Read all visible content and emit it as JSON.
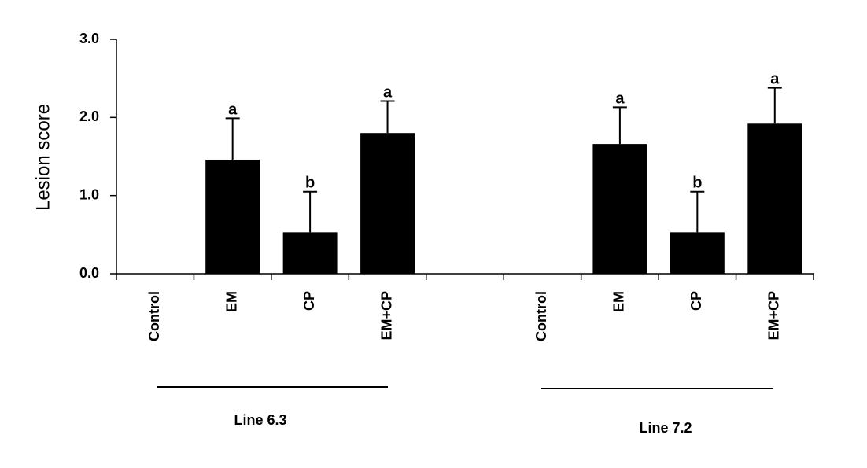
{
  "chart_data": {
    "type": "bar",
    "y_label": "Lesion score",
    "categories": [
      "Control",
      "EM",
      "CP",
      "EM+CP",
      null,
      "Control",
      "EM",
      "CP",
      "EM+CP"
    ],
    "values": [
      0,
      1.46,
      0.53,
      1.8,
      null,
      0,
      1.66,
      0.53,
      1.92
    ],
    "errors": [
      null,
      0.53,
      0.52,
      0.41,
      null,
      null,
      0.47,
      0.52,
      0.46
    ],
    "annotations": [
      null,
      "a",
      "b",
      "a",
      null,
      null,
      "a",
      "b",
      "a"
    ],
    "groups": [
      "Line 6.3",
      "Line 7.2"
    ],
    "color": "#000000",
    "ylim": [
      0,
      3
    ],
    "yticks": [
      {
        "value": 0,
        "label": "0.0"
      },
      {
        "value": 1,
        "label": "1.0"
      },
      {
        "value": 2,
        "label": "2.0"
      },
      {
        "value": 3,
        "label": "3.0"
      }
    ]
  }
}
